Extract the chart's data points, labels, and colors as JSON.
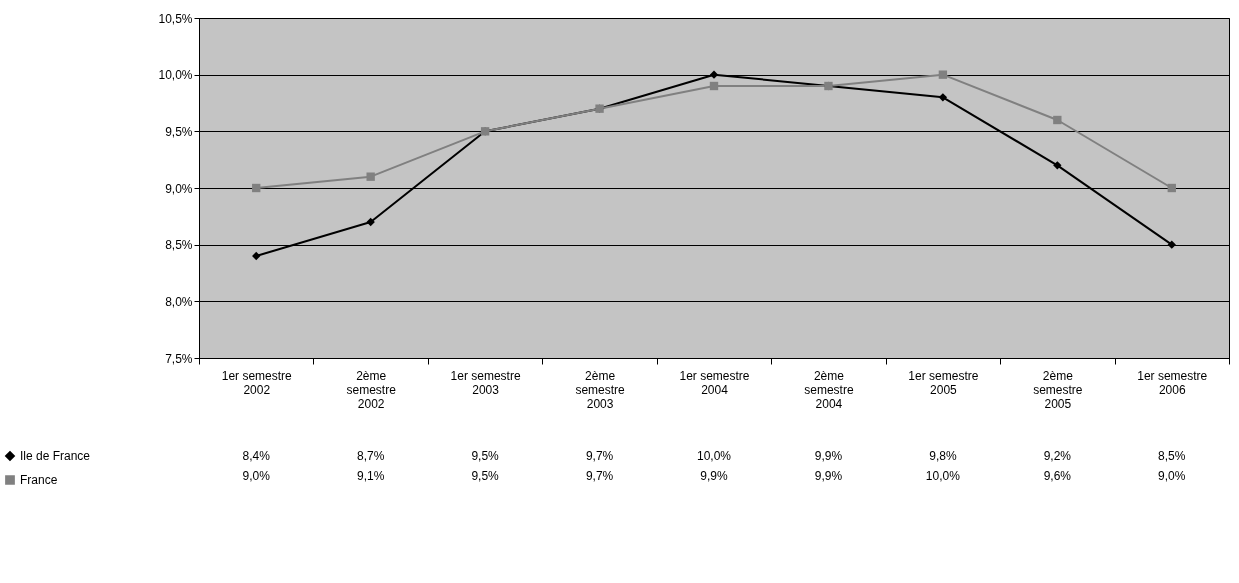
{
  "chart_data": {
    "type": "line",
    "categories": [
      "1er semestre 2002",
      "2ème semestre 2002",
      "1er semestre 2003",
      "2ème semestre 2003",
      "1er semestre 2004",
      "2ème semestre 2004",
      "1er semestre 2005",
      "2ème semestre 2005",
      "1er semestre 2006"
    ],
    "series": [
      {
        "name": "Ile de France",
        "color": "#000000",
        "marker": "diamond",
        "values": [
          8.4,
          8.7,
          9.5,
          9.7,
          10.0,
          9.9,
          9.8,
          9.2,
          8.5
        ],
        "value_labels": [
          "8,4%",
          "8,7%",
          "9,5%",
          "9,7%",
          "10,0%",
          "9,9%",
          "9,8%",
          "9,2%",
          "8,5%"
        ]
      },
      {
        "name": "France",
        "color": "#808080",
        "marker": "square",
        "values": [
          9.0,
          9.1,
          9.5,
          9.7,
          9.9,
          9.9,
          10.0,
          9.6,
          9.0
        ],
        "value_labels": [
          "9,0%",
          "9,1%",
          "9,5%",
          "9,7%",
          "9,9%",
          "9,9%",
          "10,0%",
          "9,6%",
          "9,0%"
        ]
      }
    ],
    "ylim": [
      7.5,
      10.5
    ],
    "yticks": [
      {
        "value": 7.5,
        "label": "7,5%"
      },
      {
        "value": 8.0,
        "label": "8,0%"
      },
      {
        "value": 8.5,
        "label": "8,5%"
      },
      {
        "value": 9.0,
        "label": "9,0%"
      },
      {
        "value": 9.5,
        "label": "9,5%"
      },
      {
        "value": 10.0,
        "label": "10,0%"
      },
      {
        "value": 10.5,
        "label": "10,5%"
      }
    ],
    "grid": "y",
    "legend": "bottom left",
    "line_style": "solid"
  }
}
